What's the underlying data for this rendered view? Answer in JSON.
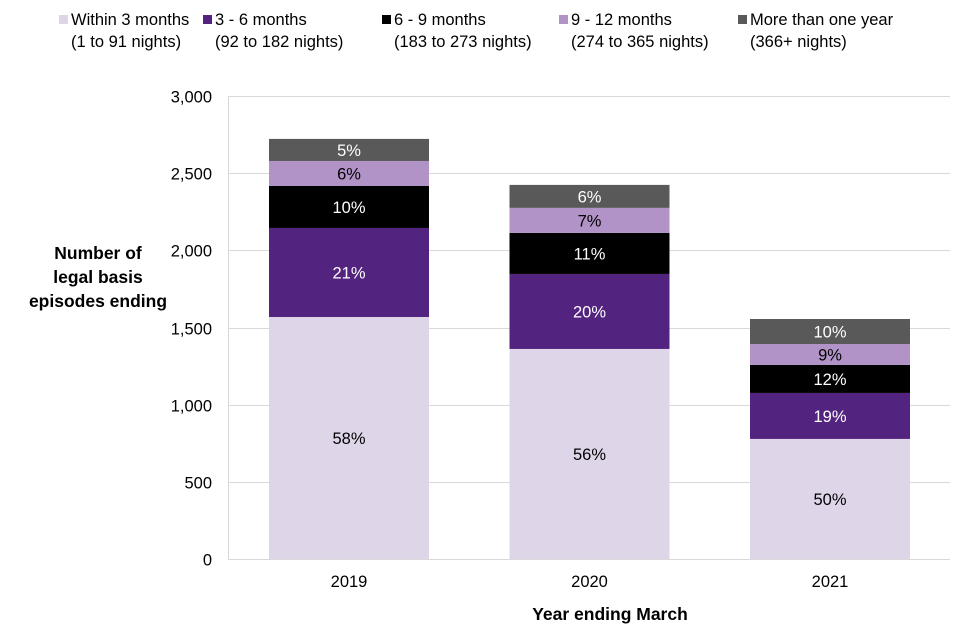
{
  "chart_data": {
    "type": "bar",
    "stacked": true,
    "title": "",
    "xlabel": "Year ending March",
    "ylabel": "Number of legal basis episodes ending",
    "ylabel_lines": [
      "Number of",
      "legal basis",
      "episodes ending"
    ],
    "ylim": [
      0,
      3000
    ],
    "yticks": [
      0,
      500,
      1000,
      1500,
      2000,
      2500,
      3000
    ],
    "ytick_labels": [
      "0",
      "500",
      "1,000",
      "1,500",
      "2,000",
      "2,500",
      "3,000"
    ],
    "grid": true,
    "legend_position": "top",
    "categories": [
      "2019",
      "2020",
      "2021"
    ],
    "series": [
      {
        "name": "Within 3 months",
        "subtitle": "(1 to 91 nights)",
        "color": "#DFD5E9",
        "label_color": "#000000",
        "values": [
          1568,
          1361,
          778
        ],
        "labels": [
          "58%",
          "56%",
          "50%"
        ]
      },
      {
        "name": "3 - 6 months",
        "subtitle": "(92 to 182 nights)",
        "color": "#52247F",
        "label_color": "#FFFFFF",
        "values": [
          577,
          486,
          298
        ],
        "labels": [
          "21%",
          "20%",
          "19%"
        ]
      },
      {
        "name": "6 - 9 months",
        "subtitle": "(183 to 273 nights)",
        "color": "#000000",
        "label_color": "#FFFFFF",
        "values": [
          272,
          266,
          181
        ],
        "labels": [
          "10%",
          "11%",
          "12%"
        ]
      },
      {
        "name": "9 - 12 months",
        "subtitle": "(274 to 365 nights)",
        "color": "#B193C7",
        "label_color": "#000000",
        "values": [
          162,
          162,
          136
        ],
        "labels": [
          "6%",
          "7%",
          "9%"
        ]
      },
      {
        "name": "More than one year",
        "subtitle": "(366+ nights)",
        "color": "#595959",
        "label_color": "#FFFFFF",
        "values": [
          143,
          149,
          162
        ],
        "labels": [
          "5%",
          "6%",
          "10%"
        ]
      }
    ],
    "totals": [
      2722,
      2424,
      1555
    ]
  }
}
